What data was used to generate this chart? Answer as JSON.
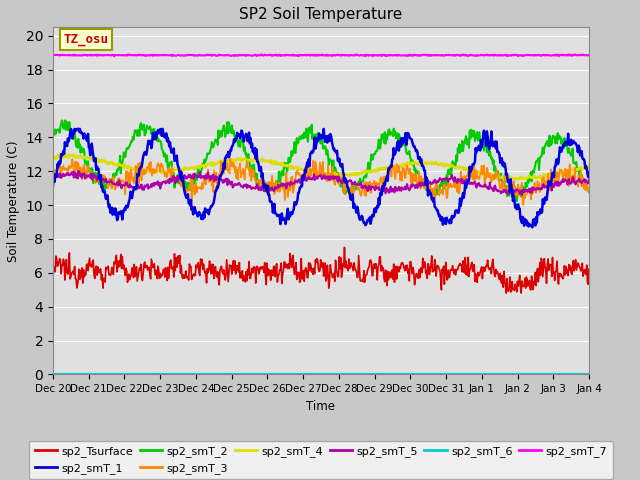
{
  "title": "SP2 Soil Temperature",
  "ylabel": "Soil Temperature (C)",
  "xlabel": "Time",
  "ylim": [
    0,
    20.5
  ],
  "yticks": [
    0,
    2,
    4,
    6,
    8,
    10,
    12,
    14,
    16,
    18,
    20
  ],
  "xtick_labels": [
    "Dec 20",
    "Dec 21",
    "Dec 22",
    "Dec 23",
    "Dec 24",
    "Dec 25",
    "Dec 26",
    "Dec 27",
    "Dec 28",
    "Dec 29",
    "Dec 30",
    "Dec 31",
    "Jan 1",
    "Jan 2",
    "Jan 3",
    "Jan 4"
  ],
  "annotation_text": "TZ_osu",
  "annotation_color": "#cc0000",
  "annotation_bg": "#ffffcc",
  "annotation_border": "#999900",
  "fig_bg": "#c8c8c8",
  "axes_bg": "#e0e0e0",
  "grid_color": "#ffffff",
  "colors": {
    "sp2_Tsurface": "#dd0000",
    "sp2_smT_1": "#0000dd",
    "sp2_smT_2": "#00cc00",
    "sp2_smT_3": "#ff8800",
    "sp2_smT_4": "#dddd00",
    "sp2_smT_5": "#aa00aa",
    "sp2_smT_6": "#00cccc",
    "sp2_smT_7": "#ff00ff"
  }
}
